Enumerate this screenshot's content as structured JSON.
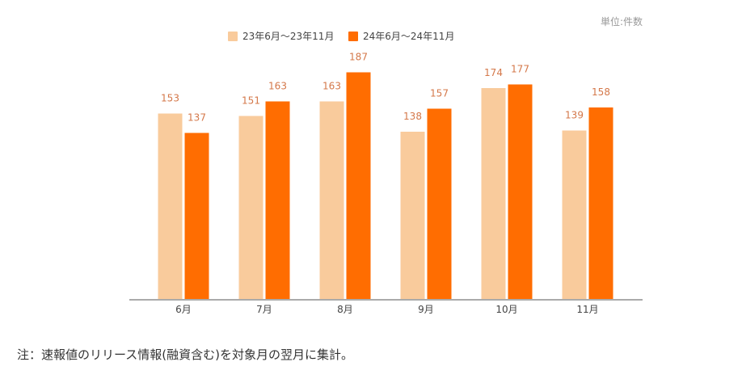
{
  "chart_data": {
    "type": "bar",
    "unit_label": "単位:件数",
    "categories": [
      "6月",
      "7月",
      "8月",
      "9月",
      "10月",
      "11月"
    ],
    "series": [
      {
        "name": "23年6月～23年11月",
        "color": "#F9CB9C",
        "values": [
          153,
          151,
          163,
          138,
          174,
          139
        ]
      },
      {
        "name": "24年6月～24年11月",
        "color": "#FF6D01",
        "values": [
          137,
          163,
          187,
          157,
          177,
          158
        ]
      }
    ],
    "ylim": [
      0,
      200
    ],
    "grid": false,
    "legend_position": "top-center",
    "data_label_color": "#D4784A"
  },
  "footnote": "注：速報値のリリース情報(融資含む)を対象月の翌月に集計。"
}
